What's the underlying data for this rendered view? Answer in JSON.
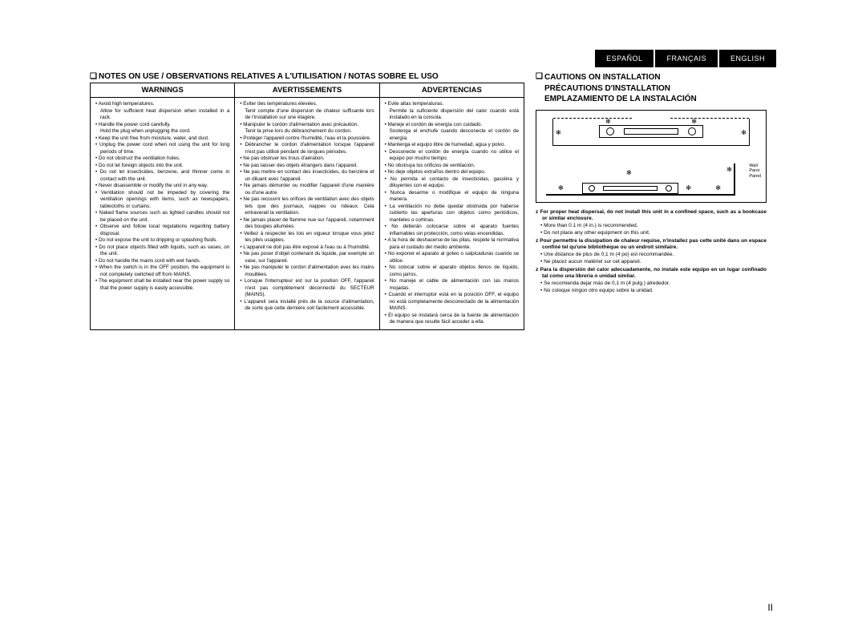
{
  "lang_tabs": [
    "ESPAÑOL",
    "FRANÇAIS",
    "ENGLISH"
  ],
  "left": {
    "title": "NOTES ON USE / OBSERVATIONS RELATIVES A L'UTILISATION / NOTAS SOBRE EL USO",
    "headers": [
      "WARNINGS",
      "AVERTISSEMENTS",
      "ADVERTENCIAS"
    ],
    "en": [
      "Avoid high temperatures.",
      "Allow for sufficient heat dispersion when installed in a rack.",
      "Handle the power cord carefully.",
      "Hold the plug when unplugging the cord.",
      "Keep the unit free from moisture, water, and dust.",
      "Unplug the power cord when not using the unit for long periods of time.",
      "Do not obstruct the ventilation holes.",
      "Do not let foreign objects into the unit.",
      "Do not let insecticides, benzene, and thinner come in contact with the unit.",
      "Never disassemble or modify the unit in any way.",
      "Ventilation should not be impeded by covering the ventilation openings with items, such as newspapers, tablecloths or curtains.",
      "Naked flame sources such as lighted candles should not be placed on the unit.",
      "Observe and follow local regulations regarding battery disposal.",
      "Do not expose the unit to dripping or splashing fluids.",
      "Do not place objects filled with liquids, such as vases, on the unit.",
      "Do not handle the mains cord with wet hands.",
      "When the switch is in the OFF position, the equipment is not completely switched off from MAINS.",
      "The equipment shall be installed near the power supply so that the power supply is easily accessible."
    ],
    "en_sub_after": {
      "0": true,
      "2": true
    },
    "fr": [
      "Eviter des températures élevées.",
      "Tenir compte d'une dispersion de chaleur suffisante lors de l'installation sur une étagère.",
      "Manipuler le cordon d'alimentation avec précaution.",
      "Tenir la prise lors du débranchement du cordon.",
      "Protéger l'appareil contre l'humidité, l'eau et la poussière.",
      "Débrancher le cordon d'alimentation lorsque l'appareil n'est pas utilisé pendant de longues périodes.",
      "Ne pas obstruer les trous d'aération.",
      "Ne pas laisser des objets étrangers dans l'appareil.",
      "Ne pas mettre en contact des insecticides, du benzène et un diluant avec l'appareil.",
      "Ne jamais démonter ou modifier l'appareil d'une manière ou d'une autre.",
      "Ne pas recouvrir les orifices de ventilation avec des objets tels que des journaux, nappes ou rideaux. Cela entraverait la ventilation.",
      "Ne jamais placer de flamme nue sur l'appareil, notamment des bougies allumées.",
      "Veillez à respecter les lois en vigueur lorsque vous jetez les piles usagées.",
      "L'appareil ne doit pas être exposé à l'eau ou à l'humidité.",
      "Ne pas poser d'objet contenant du liquide, par exemple un vase, sur l'appareil.",
      "Ne pas manipuler le cordon d'alimentation avec les mains mouillées.",
      "Lorsque l'interrupteur est sur la position OFF, l'appareil n'est pas complètement déconnecté du SECTEUR (MAINS).",
      "L'appareil sera installé près de la source d'alimentation, de sorte que cette dernière soit facilement accessible."
    ],
    "fr_sub_after": {
      "0": true,
      "2": true
    },
    "es": [
      "Evite altas temperaturas.",
      "Permite la suficiente dispersión del calor cuando está instalado en la consola.",
      "Maneje el cordón de energía con cuidado.",
      "Sostenga el enchufe cuando desconecte el cordón de energía.",
      "Mantenga el equipo libre de humedad, agua y polvo.",
      "Desconecte el cordón de energía cuando no utilice el equipo por mucho tiempo.",
      "No obstruya los orificios de ventilación.",
      "No deje objetos extraños dentro del equipo.",
      "No permita el contacto de insecticidas, gasolina y diluyentes con el equipo.",
      "Nunca desarme o modifique el equipo de ninguna manera.",
      "La ventilación no debe quedar obstruida por haberse cubierto las aperturas con objetos como periódicos, manteles o cortinas.",
      "No deberán colocarse sobre el aparato fuentes inflamables sin protección, como velas encendidas.",
      "A la hora de deshacerse de las pilas, respete la normativa para el cuidado del medio ambiente.",
      "No exponer el aparato al goteo o salpicaduras cuando se utilice.",
      "No colocar sobre el aparato objetos llenos de líquido, como jarros.",
      "No maneje el cable de alimentación con las manos mojadas.",
      "Cuando el interruptor está en la posición OFF, el equipo no está completamente desconectado de la alimentación MAINS.",
      "El equipo se instalará cerca de la fuente de alimentación de manera que resulte fácil acceder a ella."
    ],
    "es_sub_after": {
      "0": true,
      "2": true
    }
  },
  "right": {
    "titles": [
      "CAUTIONS ON INSTALLATION",
      "PRÉCAUTIONS D'INSTALLATION",
      "EMPLAZAMIENTO DE LA INSTALACIÓN"
    ],
    "wall_labels": [
      "Wall",
      "Paroi",
      "Pared"
    ],
    "items": [
      {
        "type": "star",
        "text": "For proper heat dispersal, do not install this unit in a confined space, such as a bookcase or similar enclosure."
      },
      {
        "type": "bul",
        "text": "More than 0.1 m (4 in.) is recommended."
      },
      {
        "type": "bul",
        "text": "Do not place any other equipment on this unit."
      },
      {
        "type": "star",
        "text": "Pour permettre la dissipation de chaleur requise, n'installez pas cette unité dans un espace confiné tel qu'une bibliothèque ou un endroit similaire."
      },
      {
        "type": "bul",
        "text": "Une distance de plus de 0,1 m (4 po) est recommandée."
      },
      {
        "type": "bul",
        "text": "Ne placez aucun matériel sur cet appareil."
      },
      {
        "type": "star",
        "text": "Para la dispersión del calor adecuadamente, no instale este equipo en un lugar confinado tal como una librería o unidad similar."
      },
      {
        "type": "bul",
        "text": "Se recomienda dejar más de 0,1 m (4 pulg.) alrededor."
      },
      {
        "type": "bul",
        "text": "No coloque ningún otro equipo sobre la unidad."
      }
    ]
  },
  "page_num": "II"
}
